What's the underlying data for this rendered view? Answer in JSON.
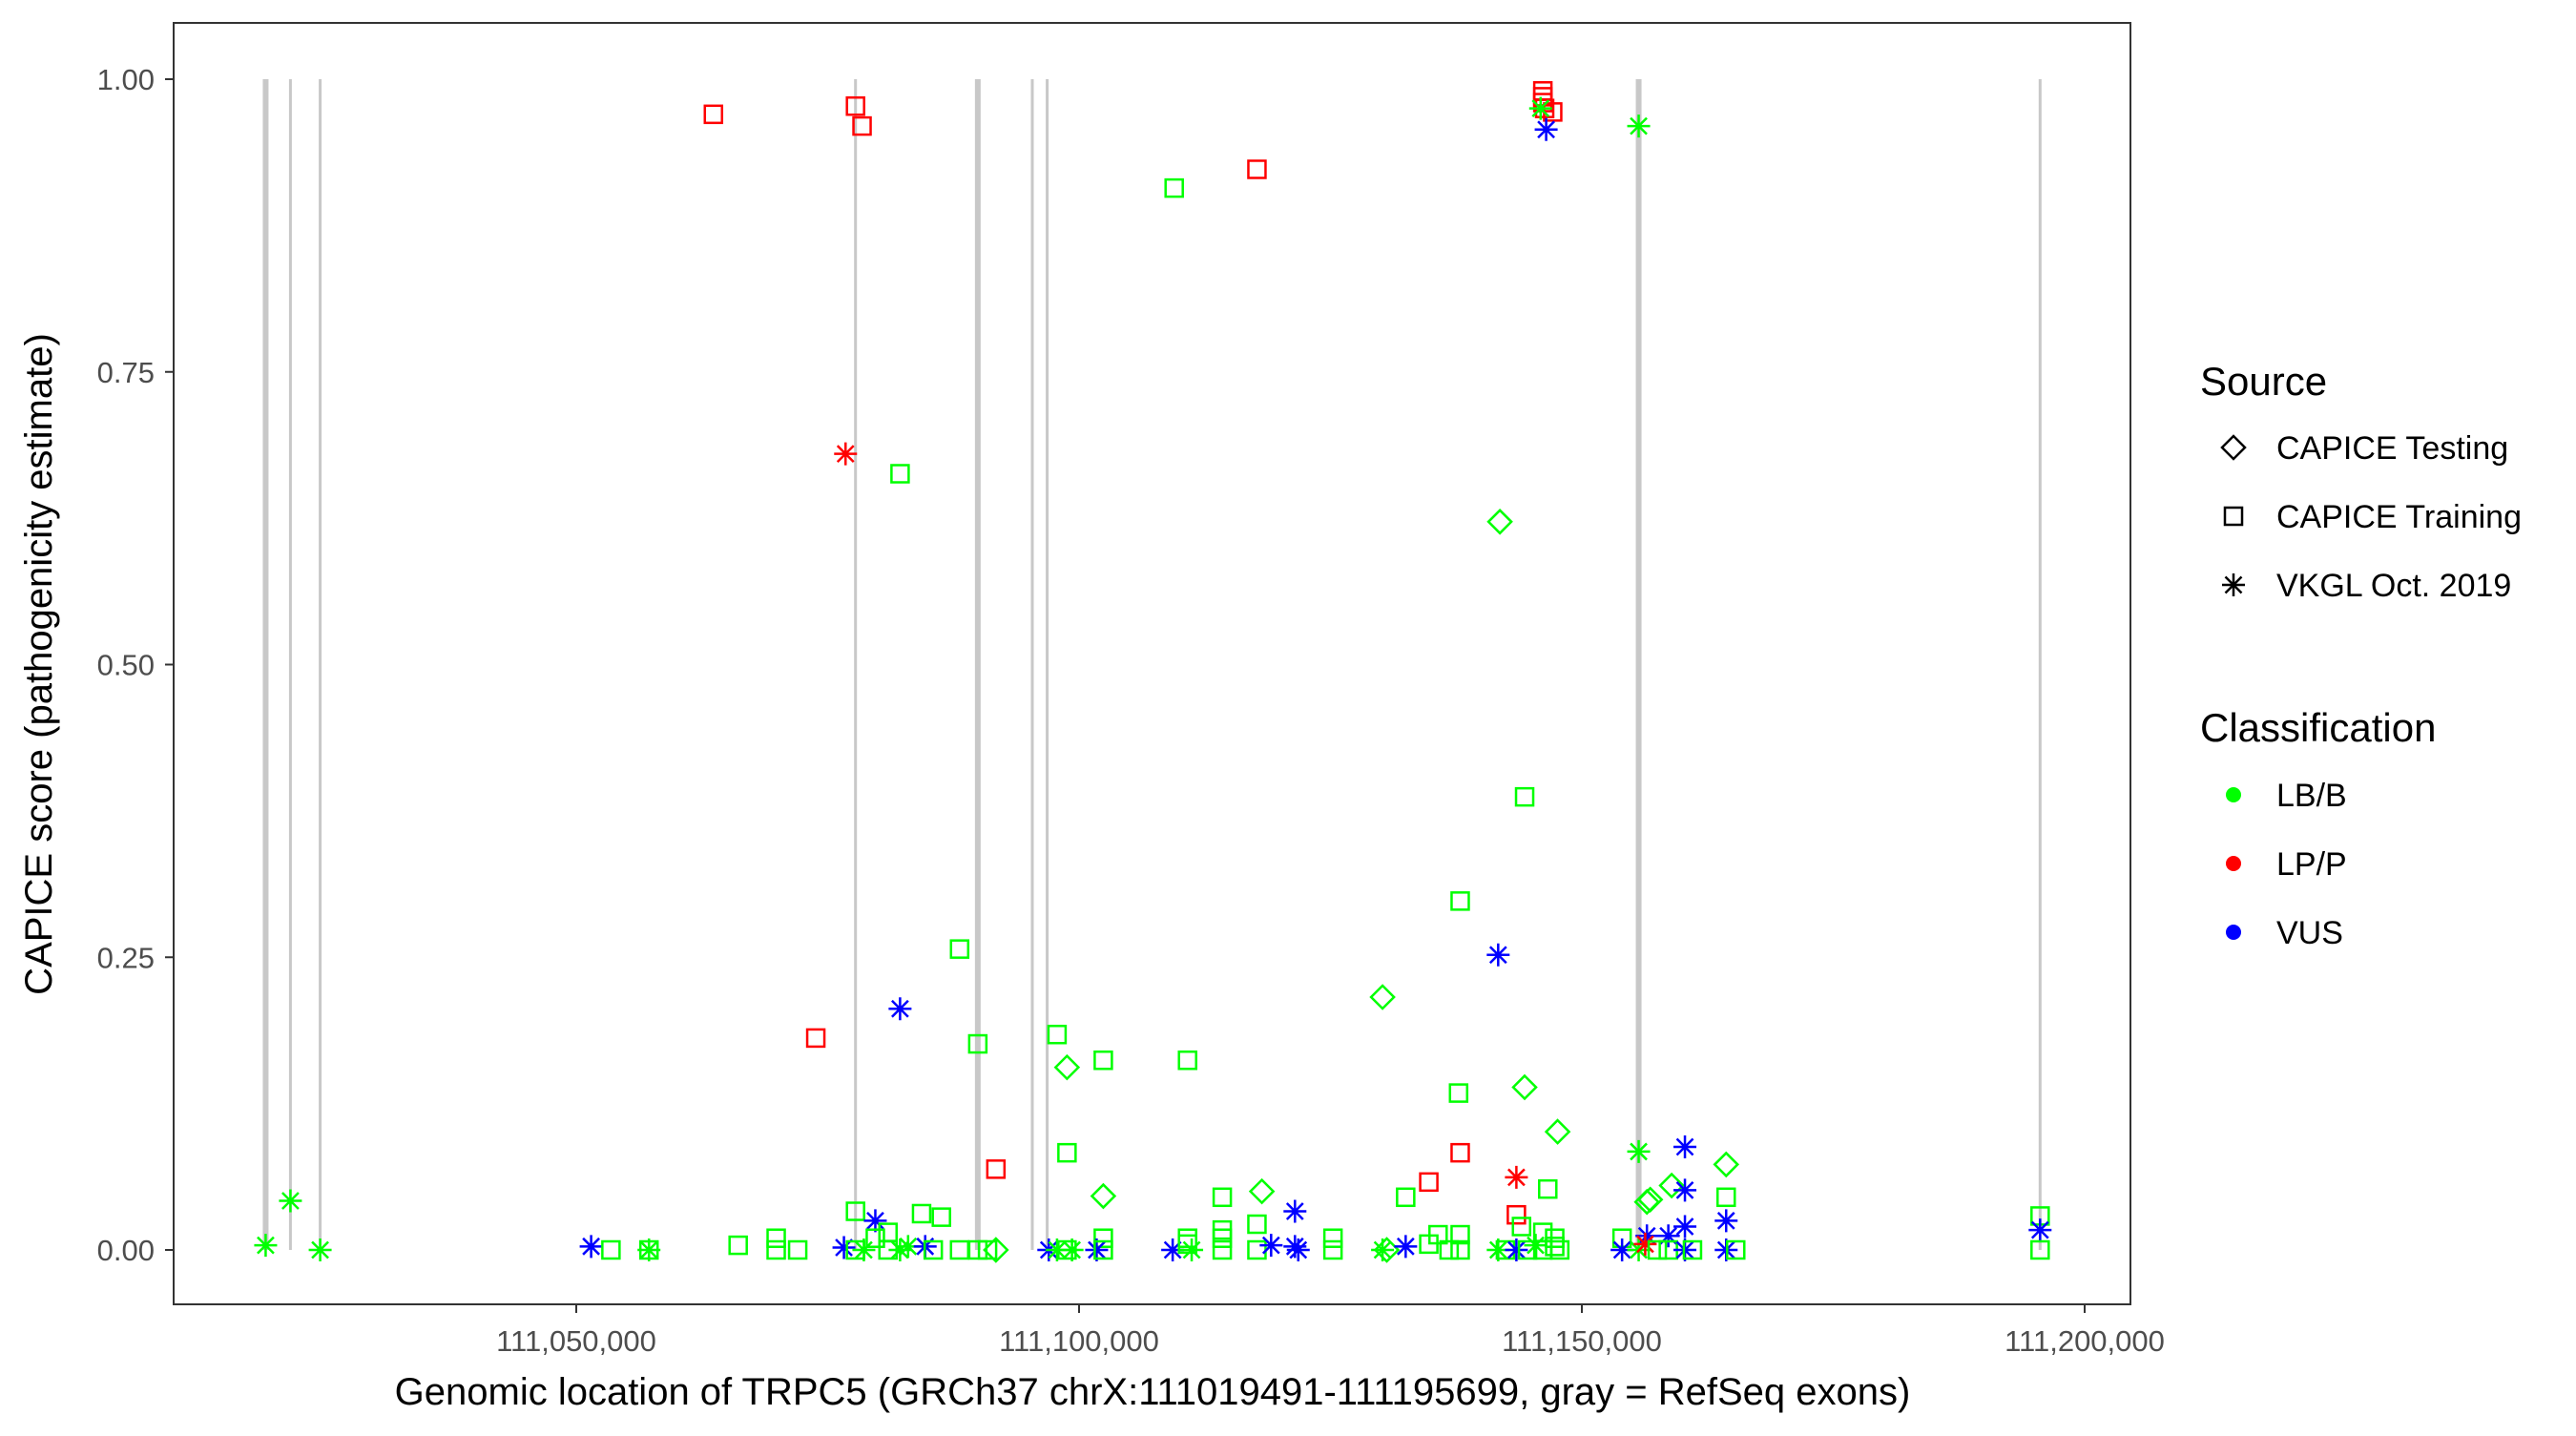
{
  "chart_data": {
    "type": "scatter",
    "title": "",
    "xlabel": "Genomic location of TRPC5 (GRCh37 chrX:111019491-111195699, gray = RefSeq exons)",
    "ylabel": "CAPICE score (pathogenicity estimate)",
    "xlim": [
      111010000,
      111210000
    ],
    "ylim": [
      -0.045,
      1.05
    ],
    "xticks": [
      111050000,
      111100000,
      111150000,
      111200000
    ],
    "xtick_labels": [
      "111,050,000",
      "111,100,000",
      "111,150,000",
      "111,200,000"
    ],
    "yticks": [
      0,
      0.25,
      0.5,
      0.75,
      1.0
    ],
    "ytick_labels": [
      "0.00",
      "0.25",
      "0.50",
      "0.75",
      "1.00"
    ],
    "grid": false,
    "exons": [
      111019112,
      111021576,
      111024533,
      111077770,
      111089930,
      111095350,
      111096830,
      111155650,
      111195570
    ],
    "legend": {
      "placement": "right",
      "source_title": "Source",
      "sources": [
        "CAPICE Testing",
        "CAPICE Training",
        "VKGL Oct. 2019"
      ],
      "source_shapes": [
        "diamond",
        "square",
        "asterisk"
      ],
      "class_title": "Classification",
      "classes": [
        "LB/B",
        "LP/P",
        "VUS"
      ],
      "class_colors": [
        "#00ff00",
        "#ff0000",
        "#0000ff"
      ]
    },
    "points_format": [
      "position",
      "score",
      "source",
      "classification"
    ],
    "points": [
      [
        111146120,
        0.99,
        "CAPICE Training",
        "LP/P"
      ],
      [
        111146120,
        0.985,
        "CAPICE Training",
        "LP/P"
      ],
      [
        111146120,
        0.98,
        "CAPICE Training",
        "LP/P"
      ],
      [
        111146300,
        0.975,
        "CAPICE Training",
        "LP/P"
      ],
      [
        111147100,
        0.972,
        "CAPICE Training",
        "LP/P"
      ],
      [
        111145900,
        0.975,
        "VKGL Oct. 2019",
        "LB/B"
      ],
      [
        111146450,
        0.957,
        "VKGL Oct. 2019",
        "VUS"
      ],
      [
        111155650,
        0.96,
        "VKGL Oct. 2019",
        "LB/B"
      ],
      [
        111063640,
        0.97,
        "CAPICE Training",
        "LP/P"
      ],
      [
        111077770,
        0.977,
        "CAPICE Training",
        "LP/P"
      ],
      [
        111078420,
        0.96,
        "CAPICE Training",
        "LP/P"
      ],
      [
        111117690,
        0.923,
        "CAPICE Training",
        "LP/P"
      ],
      [
        111109460,
        0.907,
        "CAPICE Training",
        "LB/B"
      ],
      [
        111076780,
        0.68,
        "VKGL Oct. 2019",
        "LP/P"
      ],
      [
        111082200,
        0.663,
        "CAPICE Training",
        "LB/B"
      ],
      [
        111141850,
        0.622,
        "CAPICE Testing",
        "LB/B"
      ],
      [
        111144310,
        0.387,
        "CAPICE Training",
        "LB/B"
      ],
      [
        111137900,
        0.298,
        "CAPICE Training",
        "LB/B"
      ],
      [
        111141680,
        0.252,
        "VKGL Oct. 2019",
        "VUS"
      ],
      [
        111088120,
        0.257,
        "CAPICE Training",
        "LB/B"
      ],
      [
        111130180,
        0.216,
        "CAPICE Testing",
        "LB/B"
      ],
      [
        111082200,
        0.206,
        "VKGL Oct. 2019",
        "VUS"
      ],
      [
        111073820,
        0.181,
        "CAPICE Training",
        "LP/P"
      ],
      [
        111097810,
        0.184,
        "CAPICE Training",
        "LB/B"
      ],
      [
        111089930,
        0.176,
        "CAPICE Training",
        "LB/B"
      ],
      [
        111102410,
        0.162,
        "CAPICE Training",
        "LB/B"
      ],
      [
        111110790,
        0.162,
        "CAPICE Training",
        "LB/B"
      ],
      [
        111098800,
        0.156,
        "CAPICE Testing",
        "LB/B"
      ],
      [
        111144310,
        0.139,
        "CAPICE Testing",
        "LB/B"
      ],
      [
        111137740,
        0.134,
        "CAPICE Training",
        "LB/B"
      ],
      [
        111147590,
        0.101,
        "CAPICE Testing",
        "LB/B"
      ],
      [
        111160250,
        0.088,
        "VKGL Oct. 2019",
        "VUS"
      ],
      [
        111155650,
        0.084,
        "VKGL Oct. 2019",
        "LB/B"
      ],
      [
        111098800,
        0.083,
        "CAPICE Training",
        "LB/B"
      ],
      [
        111137900,
        0.083,
        "CAPICE Training",
        "LP/P"
      ],
      [
        111164350,
        0.073,
        "CAPICE Testing",
        "LB/B"
      ],
      [
        111091730,
        0.069,
        "CAPICE Training",
        "LP/P"
      ],
      [
        111143490,
        0.062,
        "VKGL Oct. 2019",
        "LP/P"
      ],
      [
        111134780,
        0.058,
        "CAPICE Training",
        "LP/P"
      ],
      [
        111158930,
        0.055,
        "CAPICE Testing",
        "LB/B"
      ],
      [
        111146610,
        0.052,
        "CAPICE Training",
        "LB/B"
      ],
      [
        111160250,
        0.051,
        "VKGL Oct. 2019",
        "VUS"
      ],
      [
        111118180,
        0.05,
        "CAPICE Testing",
        "LB/B"
      ],
      [
        111102410,
        0.046,
        "CAPICE Testing",
        "LB/B"
      ],
      [
        111132480,
        0.045,
        "CAPICE Training",
        "LB/B"
      ],
      [
        111114240,
        0.045,
        "CAPICE Training",
        "LB/B"
      ],
      [
        111164350,
        0.045,
        "CAPICE Training",
        "LB/B"
      ],
      [
        111021576,
        0.042,
        "VKGL Oct. 2019",
        "LB/B"
      ],
      [
        111156470,
        0.041,
        "CAPICE Testing",
        "LB/B"
      ],
      [
        111156800,
        0.043,
        "CAPICE Testing",
        "LB/B"
      ],
      [
        111121470,
        0.033,
        "VKGL Oct. 2019",
        "VUS"
      ],
      [
        111077770,
        0.033,
        "CAPICE Training",
        "LB/B"
      ],
      [
        111084340,
        0.031,
        "CAPICE Training",
        "LB/B"
      ],
      [
        111143490,
        0.03,
        "CAPICE Training",
        "LP/P"
      ],
      [
        111195570,
        0.029,
        "CAPICE Training",
        "LB/B"
      ],
      [
        111086310,
        0.028,
        "CAPICE Training",
        "LB/B"
      ],
      [
        111079740,
        0.025,
        "VKGL Oct. 2019",
        "VUS"
      ],
      [
        111164350,
        0.025,
        "VKGL Oct. 2019",
        "VUS"
      ],
      [
        111117690,
        0.022,
        "CAPICE Training",
        "LB/B"
      ],
      [
        111144000,
        0.02,
        "CAPICE Training",
        "LB/B"
      ],
      [
        111160250,
        0.02,
        "VKGL Oct. 2019",
        "VUS"
      ],
      [
        111195570,
        0.017,
        "VKGL Oct. 2019",
        "VUS"
      ],
      [
        111114240,
        0.017,
        "CAPICE Training",
        "LB/B"
      ],
      [
        111081000,
        0.015,
        "CAPICE Training",
        "LB/B"
      ],
      [
        111146120,
        0.015,
        "CAPICE Training",
        "LB/B"
      ],
      [
        111137900,
        0.013,
        "CAPICE Training",
        "LB/B"
      ],
      [
        111135700,
        0.013,
        "CAPICE Training",
        "LB/B"
      ],
      [
        111156470,
        0.012,
        "VKGL Oct. 2019",
        "VUS"
      ],
      [
        111158600,
        0.012,
        "VKGL Oct. 2019",
        "VUS"
      ],
      [
        111069880,
        0.01,
        "CAPICE Training",
        "LB/B"
      ],
      [
        111079740,
        0.01,
        "CAPICE Training",
        "LB/B"
      ],
      [
        111102410,
        0.01,
        "CAPICE Training",
        "LB/B"
      ],
      [
        111110790,
        0.01,
        "CAPICE Training",
        "LB/B"
      ],
      [
        111114240,
        0.01,
        "CAPICE Training",
        "LB/B"
      ],
      [
        111125250,
        0.01,
        "CAPICE Training",
        "LB/B"
      ],
      [
        111154000,
        0.01,
        "CAPICE Training",
        "LB/B"
      ],
      [
        111147300,
        0.01,
        "CAPICE Training",
        "LB/B"
      ],
      [
        111019112,
        0.004,
        "VKGL Oct. 2019",
        "LB/B"
      ],
      [
        111024533,
        0.0,
        "VKGL Oct. 2019",
        "LB/B"
      ],
      [
        111051479,
        0.003,
        "VKGL Oct. 2019",
        "VUS"
      ],
      [
        111053450,
        0.0,
        "CAPICE Training",
        "LB/B"
      ],
      [
        111057230,
        0.0,
        "CAPICE Training",
        "LB/B"
      ],
      [
        111057230,
        0.0,
        "VKGL Oct. 2019",
        "LB/B"
      ],
      [
        111066100,
        0.004,
        "CAPICE Training",
        "LB/B"
      ],
      [
        111069880,
        0.0,
        "CAPICE Training",
        "LB/B"
      ],
      [
        111072020,
        0.0,
        "CAPICE Training",
        "LB/B"
      ],
      [
        111076620,
        0.002,
        "VKGL Oct. 2019",
        "VUS"
      ],
      [
        111077770,
        0.0,
        "CAPICE Training",
        "LB/B"
      ],
      [
        111078600,
        0.0,
        "VKGL Oct. 2019",
        "LB/B"
      ],
      [
        111081000,
        0.0,
        "CAPICE Training",
        "LB/B"
      ],
      [
        111082200,
        0.0,
        "VKGL Oct. 2019",
        "LB/B"
      ],
      [
        111083000,
        0.003,
        "VKGL Oct. 2019",
        "LB/B"
      ],
      [
        111084700,
        0.003,
        "VKGL Oct. 2019",
        "VUS"
      ],
      [
        111085500,
        0.0,
        "CAPICE Training",
        "LB/B"
      ],
      [
        111088120,
        0.0,
        "CAPICE Training",
        "LB/B"
      ],
      [
        111089930,
        0.0,
        "CAPICE Training",
        "LB/B"
      ],
      [
        111090900,
        0.0,
        "CAPICE Training",
        "LB/B"
      ],
      [
        111091730,
        0.0,
        "CAPICE Testing",
        "LB/B"
      ],
      [
        111096990,
        0.0,
        "VKGL Oct. 2019",
        "VUS"
      ],
      [
        111097810,
        0.0,
        "VKGL Oct. 2019",
        "LB/B"
      ],
      [
        111098800,
        0.0,
        "CAPICE Training",
        "LB/B"
      ],
      [
        111099300,
        0.0,
        "VKGL Oct. 2019",
        "LB/B"
      ],
      [
        111101750,
        0.0,
        "VKGL Oct. 2019",
        "VUS"
      ],
      [
        111102410,
        0.0,
        "CAPICE Training",
        "LB/B"
      ],
      [
        111109310,
        0.0,
        "VKGL Oct. 2019",
        "VUS"
      ],
      [
        111110790,
        0.005,
        "CAPICE Training",
        "LB/B"
      ],
      [
        111111200,
        0.0,
        "VKGL Oct. 2019",
        "LB/B"
      ],
      [
        111114240,
        0.0,
        "CAPICE Training",
        "LB/B"
      ],
      [
        111117690,
        0.0,
        "CAPICE Training",
        "LB/B"
      ],
      [
        111119100,
        0.004,
        "VKGL Oct. 2019",
        "VUS"
      ],
      [
        111121470,
        0.003,
        "VKGL Oct. 2019",
        "VUS"
      ],
      [
        111121800,
        0.0,
        "VKGL Oct. 2019",
        "VUS"
      ],
      [
        111125250,
        0.0,
        "CAPICE Training",
        "LB/B"
      ],
      [
        111130180,
        0.0,
        "VKGL Oct. 2019",
        "LB/B"
      ],
      [
        111130600,
        0.0,
        "CAPICE Testing",
        "LB/B"
      ],
      [
        111132480,
        0.003,
        "VKGL Oct. 2019",
        "VUS"
      ],
      [
        111134780,
        0.005,
        "CAPICE Training",
        "LB/B"
      ],
      [
        111136800,
        0.0,
        "CAPICE Training",
        "LB/B"
      ],
      [
        111137900,
        0.0,
        "CAPICE Training",
        "LB/B"
      ],
      [
        111141680,
        0.0,
        "VKGL Oct. 2019",
        "LB/B"
      ],
      [
        111142400,
        0.0,
        "CAPICE Training",
        "LB/B"
      ],
      [
        111143490,
        0.0,
        "VKGL Oct. 2019",
        "VUS"
      ],
      [
        111144600,
        0.0,
        "CAPICE Training",
        "LB/B"
      ],
      [
        111145400,
        0.004,
        "VKGL Oct. 2019",
        "LB/B"
      ],
      [
        111146120,
        0.0,
        "CAPICE Training",
        "LB/B"
      ],
      [
        111147300,
        0.003,
        "CAPICE Training",
        "LB/B"
      ],
      [
        111147800,
        0.0,
        "CAPICE Training",
        "LB/B"
      ],
      [
        111154000,
        0.0,
        "VKGL Oct. 2019",
        "VUS"
      ],
      [
        111155650,
        0.0,
        "VKGL Oct. 2019",
        "LB/B"
      ],
      [
        111156300,
        0.005,
        "VKGL Oct. 2019",
        "LP/P"
      ],
      [
        111157500,
        0.0,
        "CAPICE Training",
        "LB/B"
      ],
      [
        111158600,
        0.0,
        "CAPICE Training",
        "LB/B"
      ],
      [
        111160250,
        0.0,
        "VKGL Oct. 2019",
        "VUS"
      ],
      [
        111161000,
        0.0,
        "CAPICE Training",
        "LB/B"
      ],
      [
        111164350,
        0.0,
        "VKGL Oct. 2019",
        "VUS"
      ],
      [
        111165300,
        0.0,
        "CAPICE Training",
        "LB/B"
      ],
      [
        111195570,
        0.0,
        "CAPICE Training",
        "LB/B"
      ]
    ]
  }
}
